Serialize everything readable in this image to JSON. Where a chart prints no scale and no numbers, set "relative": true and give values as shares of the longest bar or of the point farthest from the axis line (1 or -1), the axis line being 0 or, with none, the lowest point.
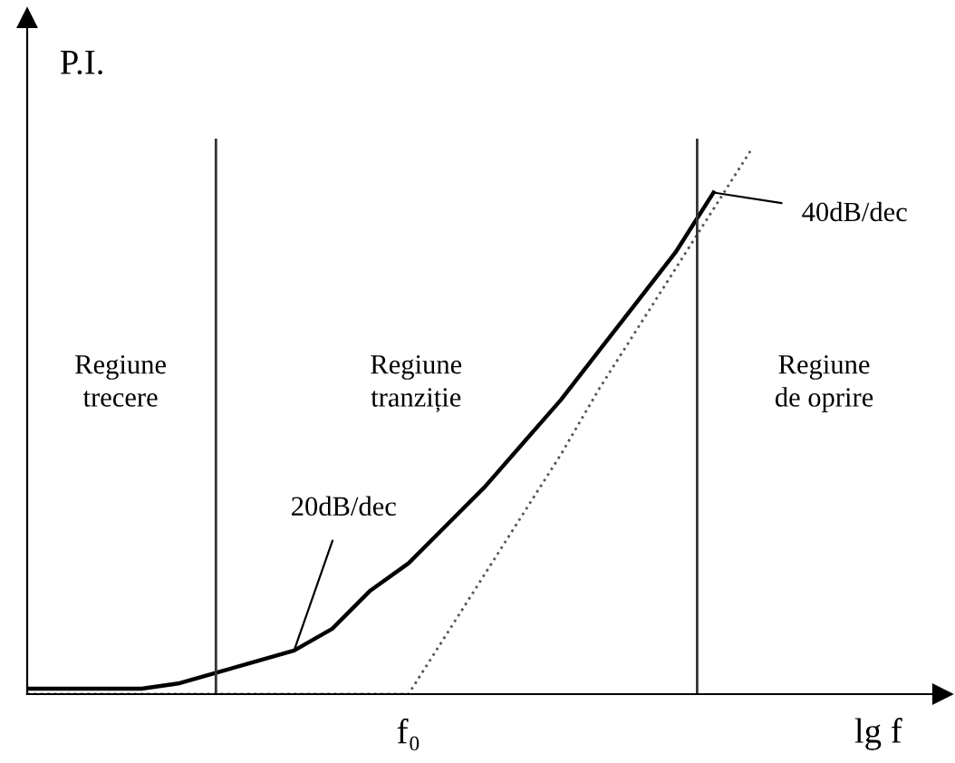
{
  "chart_data": {
    "type": "line",
    "relative": true,
    "xlabel": "lg f",
    "ylabel": "P.I.",
    "categories": [
      null,
      null,
      null,
      null,
      null,
      null,
      null,
      null,
      null,
      null,
      null,
      null,
      null,
      null,
      null,
      null,
      null,
      null,
      null,
      null,
      null,
      null,
      null,
      null
    ],
    "series": [
      {
        "color": "#000000",
        "line_style": "solid",
        "values": [
          0.01,
          0.01,
          0.01,
          0.01,
          0.02,
          0.04,
          0.06,
          0.08,
          0.12,
          0.19,
          0.24,
          0.31,
          0.38,
          0.46,
          0.54,
          0.63,
          0.72,
          0.81,
          0.92,
          null,
          null,
          null,
          null,
          null
        ]
      },
      {
        "color": "#555555",
        "line_style": "dotted",
        "values": [
          0,
          0,
          0,
          0,
          0,
          0,
          0,
          0,
          0,
          0,
          0,
          0.11,
          0.22,
          0.33,
          0.44,
          0.56,
          0.67,
          0.78,
          0.89,
          1.0,
          null,
          null,
          null,
          null
        ]
      }
    ],
    "annotations": [
      "Regiune\ntrecere",
      "Regiune\ntranziție",
      "Regiune\nde oprire",
      "20dB/dec",
      "40dB/dec",
      "f₀"
    ],
    "marker": "none",
    "grid": false,
    "legend": false
  }
}
